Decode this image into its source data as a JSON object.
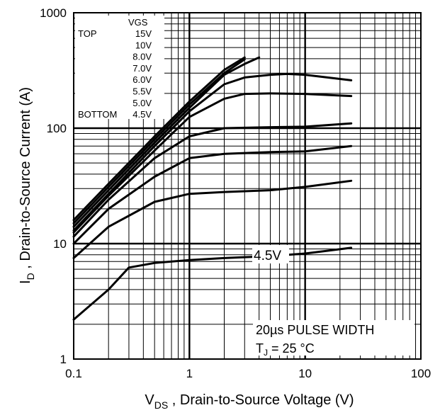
{
  "chart_data": {
    "type": "line",
    "xscale": "log",
    "yscale": "log",
    "xlim": [
      0.1,
      100
    ],
    "ylim": [
      1,
      1000
    ],
    "grid": true,
    "x_ticks": [
      "0.1",
      "1",
      "10",
      "100"
    ],
    "y_ticks": [
      "1",
      "10",
      "100",
      "1000"
    ],
    "xlabel": {
      "main": "V",
      "sub": "DS",
      "rest": " , Drain-to-Source Voltage (V)"
    },
    "ylabel": {
      "main": "I",
      "sub": "D",
      "rest": " ,  Drain-to-Source Current (A)"
    },
    "legend": {
      "position": "top-left",
      "header": "VGS",
      "top_label": "TOP",
      "bottom_label": "BOTTOM",
      "entries": [
        "15V",
        "10V",
        "8.0V",
        "7.0V",
        "6.0V",
        "5.5V",
        "5.0V",
        "4.5V"
      ]
    },
    "annotation": "4.5V",
    "note": {
      "line1": "20µs PULSE WIDTH",
      "tj_main": "T",
      "tj_sub": "J",
      "tj_rest": " = 25 °C"
    },
    "series": [
      {
        "name": "15V",
        "points": [
          [
            0.1,
            16
          ],
          [
            0.2,
            33
          ],
          [
            0.5,
            85
          ],
          [
            1,
            170
          ],
          [
            2,
            320
          ],
          [
            3,
            410
          ]
        ]
      },
      {
        "name": "10V",
        "points": [
          [
            0.1,
            15
          ],
          [
            0.2,
            31
          ],
          [
            0.5,
            80
          ],
          [
            1,
            160
          ],
          [
            2,
            300
          ],
          [
            3,
            395
          ]
        ]
      },
      {
        "name": "8.0V",
        "points": [
          [
            0.1,
            14
          ],
          [
            0.2,
            29
          ],
          [
            0.5,
            75
          ],
          [
            1,
            150
          ],
          [
            2,
            290
          ],
          [
            3,
            360
          ],
          [
            4,
            410
          ]
        ]
      },
      {
        "name": "7.0V",
        "points": [
          [
            0.1,
            13
          ],
          [
            0.2,
            27
          ],
          [
            0.5,
            70
          ],
          [
            1,
            140
          ],
          [
            2,
            240
          ],
          [
            3,
            275
          ],
          [
            5,
            290
          ],
          [
            7,
            295
          ],
          [
            10,
            290
          ],
          [
            25,
            260
          ]
        ]
      },
      {
        "name": "6.0V",
        "points": [
          [
            0.1,
            12.5
          ],
          [
            0.2,
            26
          ],
          [
            0.5,
            64
          ],
          [
            1,
            125
          ],
          [
            2,
            180
          ],
          [
            3,
            198
          ],
          [
            5,
            200
          ],
          [
            10,
            198
          ],
          [
            25,
            190
          ]
        ]
      },
      {
        "name": "5.5V",
        "points": [
          [
            0.1,
            11.5
          ],
          [
            0.2,
            24
          ],
          [
            0.5,
            55
          ],
          [
            1,
            85
          ],
          [
            2,
            100
          ],
          [
            5,
            102
          ],
          [
            10,
            103
          ],
          [
            25,
            110
          ]
        ]
      },
      {
        "name": "5.0V",
        "points": [
          [
            0.1,
            10
          ],
          [
            0.2,
            20
          ],
          [
            0.5,
            38
          ],
          [
            1,
            55
          ],
          [
            2,
            60
          ],
          [
            5,
            62
          ],
          [
            10,
            63
          ],
          [
            25,
            70
          ]
        ]
      },
      {
        "name": "4.5V",
        "points": [
          [
            0.1,
            7.5
          ],
          [
            0.2,
            14
          ],
          [
            0.5,
            23
          ],
          [
            1,
            27
          ],
          [
            2,
            28
          ],
          [
            5,
            29
          ],
          [
            10,
            31
          ],
          [
            25,
            35
          ]
        ]
      },
      {
        "name": "",
        "points": [
          [
            0.1,
            2.2
          ],
          [
            0.2,
            4
          ],
          [
            0.3,
            6.2
          ],
          [
            0.5,
            6.8
          ],
          [
            1,
            7.2
          ],
          [
            2,
            7.5
          ],
          [
            5,
            7.8
          ],
          [
            10,
            8.2
          ],
          [
            25,
            9.2
          ]
        ]
      }
    ]
  }
}
